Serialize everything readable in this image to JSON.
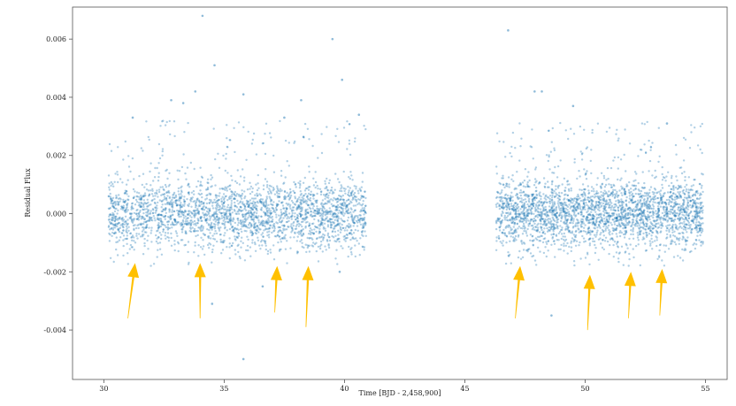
{
  "chart_data": {
    "type": "scatter",
    "title": "",
    "xlabel": "Time [BJD - 2,458,900]",
    "ylabel": "Residual Flux",
    "xlim": [
      28.7,
      55.9
    ],
    "ylim": [
      -0.0057,
      0.0071
    ],
    "xticks": [
      30,
      35,
      40,
      45,
      50,
      55
    ],
    "xtick_labels": [
      "30",
      "35",
      "40",
      "45",
      "50",
      "55"
    ],
    "yticks": [
      -0.004,
      -0.002,
      0.0,
      0.002,
      0.004,
      0.006
    ],
    "ytick_labels": [
      "-0.004",
      "-0.002",
      "0.000",
      "0.002",
      "0.004",
      "0.006"
    ],
    "grid": false,
    "point_color": "#1f77b4",
    "arrow_color": "#ffc000",
    "observation_segments": [
      {
        "x_start": 30.2,
        "x_end": 40.9
      },
      {
        "x_start": 46.3,
        "x_end": 54.9
      }
    ],
    "scatter_summary": {
      "center": 0.0,
      "spread_sd": 0.0006,
      "approx_points_per_segment": 2600
    },
    "outliers": [
      {
        "x": 34.1,
        "y": 0.0068
      },
      {
        "x": 39.5,
        "y": 0.006
      },
      {
        "x": 46.8,
        "y": 0.0063
      },
      {
        "x": 39.9,
        "y": 0.0046
      },
      {
        "x": 34.6,
        "y": 0.0051
      },
      {
        "x": 33.8,
        "y": 0.0042
      },
      {
        "x": 35.8,
        "y": 0.0041
      },
      {
        "x": 38.2,
        "y": 0.0039
      },
      {
        "x": 32.8,
        "y": 0.0039
      },
      {
        "x": 47.9,
        "y": 0.0042
      },
      {
        "x": 48.2,
        "y": 0.0042
      },
      {
        "x": 49.5,
        "y": 0.0037
      },
      {
        "x": 37.5,
        "y": 0.0033
      },
      {
        "x": 33.3,
        "y": 0.0038
      },
      {
        "x": 40.6,
        "y": 0.0034
      },
      {
        "x": 31.2,
        "y": 0.0033
      },
      {
        "x": 53.4,
        "y": 0.0031
      },
      {
        "x": 35.8,
        "y": -0.005
      },
      {
        "x": 34.5,
        "y": -0.0031
      },
      {
        "x": 48.6,
        "y": -0.0035
      },
      {
        "x": 36.6,
        "y": -0.0025
      },
      {
        "x": 39.8,
        "y": -0.002
      }
    ],
    "arrows": [
      {
        "x_tail": 31.0,
        "y_tail": -0.0036,
        "x_head": 31.3,
        "y_head": -0.0017
      },
      {
        "x_tail": 34.0,
        "y_tail": -0.0036,
        "x_head": 34.0,
        "y_head": -0.0017
      },
      {
        "x_tail": 37.1,
        "y_tail": -0.0034,
        "x_head": 37.2,
        "y_head": -0.0018
      },
      {
        "x_tail": 38.4,
        "y_tail": -0.0039,
        "x_head": 38.5,
        "y_head": -0.0018
      },
      {
        "x_tail": 47.1,
        "y_tail": -0.0036,
        "x_head": 47.3,
        "y_head": -0.0018
      },
      {
        "x_tail": 50.1,
        "y_tail": -0.004,
        "x_head": 50.2,
        "y_head": -0.0021
      },
      {
        "x_tail": 51.8,
        "y_tail": -0.0036,
        "x_head": 51.9,
        "y_head": -0.002
      },
      {
        "x_tail": 53.1,
        "y_tail": -0.0035,
        "x_head": 53.2,
        "y_head": -0.0019
      }
    ]
  }
}
